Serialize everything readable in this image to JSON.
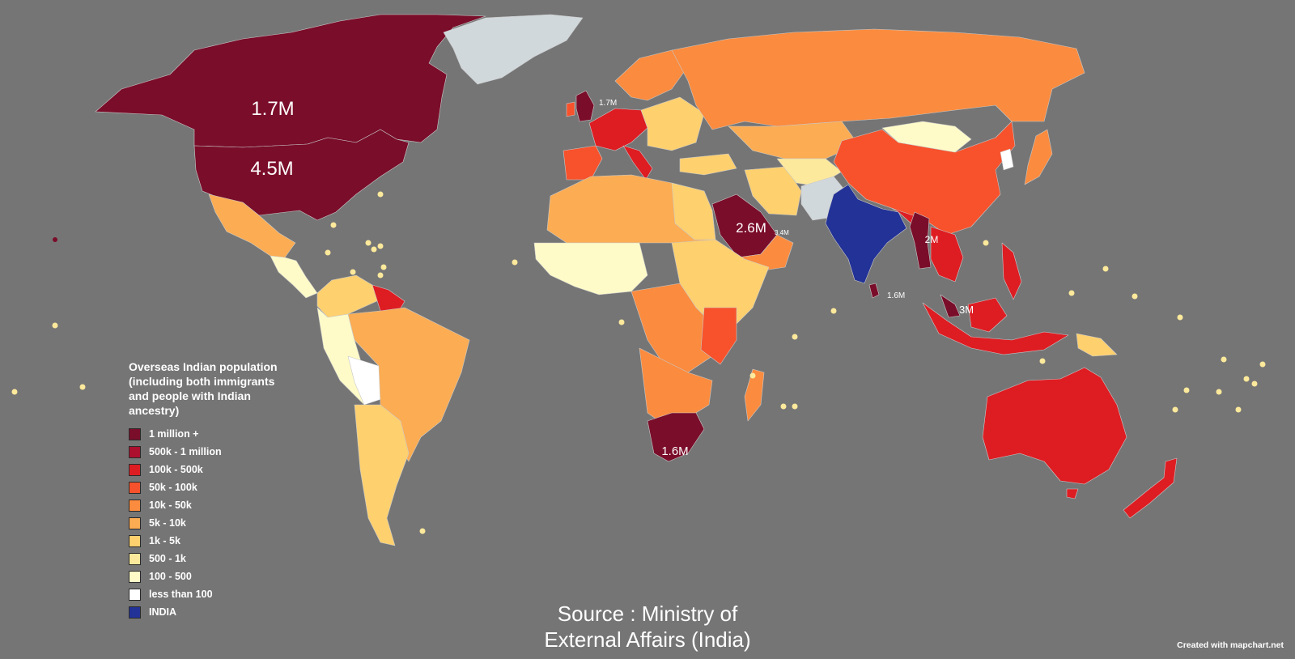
{
  "colors": {
    "background": "#757575",
    "no_data": "#d1d8dc",
    "million_plus": "#7a0d2a",
    "k500_1m": "#ad0f2f",
    "k100_500k": "#de1d23",
    "k50_100k": "#f7522c",
    "k10_50k": "#fb8b3e",
    "k5_10k": "#fcac52",
    "k1_5k": "#fed06e",
    "h500_1k": "#fde99b",
    "h100_500": "#fffbc8",
    "less_100": "#ffffff",
    "india": "#233297"
  },
  "legend": {
    "title_lines": [
      "Overseas Indian population",
      "(including both immigrants",
      "and people with Indian",
      "ancestry)"
    ],
    "items": [
      {
        "label": "1 million +",
        "color": "#7a0d2a"
      },
      {
        "label": "500k - 1 million",
        "color": "#ad0f2f"
      },
      {
        "label": "100k - 500k",
        "color": "#de1d23"
      },
      {
        "label": "50k - 100k",
        "color": "#f7522c"
      },
      {
        "label": "10k - 50k",
        "color": "#fb8b3e"
      },
      {
        "label": "5k - 10k",
        "color": "#fcac52"
      },
      {
        "label": "1k - 5k",
        "color": "#fed06e"
      },
      {
        "label": "500 - 1k",
        "color": "#fde99b"
      },
      {
        "label": "100 - 500",
        "color": "#fffbc8"
      },
      {
        "label": "less than 100",
        "color": "#ffffff"
      },
      {
        "label": "INDIA",
        "color": "#233297"
      }
    ]
  },
  "map_labels": {
    "canada": "1.7M",
    "usa": "4.5M",
    "uk": "1.7M",
    "saudi": "2.6M",
    "uae": "3.4M",
    "myanmar": "2M",
    "sri_lanka": "1.6M",
    "malaysia": "3M",
    "south_africa": "1.6M"
  },
  "source_lines": [
    "Source : Ministry of",
    "External Affairs (India)"
  ],
  "credit": "Created with mapchart.net"
}
